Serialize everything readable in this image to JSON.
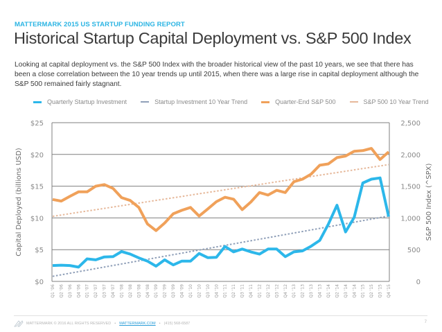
{
  "header": {
    "kicker": "MATTERMARK 2015 US STARTUP FUNDING REPORT",
    "title": "Historical Startup Capital Deployment vs. S&P 500 Index",
    "intro": "Looking at capital deployment vs. the S&P 500 Index with the broader historical view of the past 10 years, we see that there has been a close correlation between the 10 year trends up until 2015, when there was a large rise in capital deployment although the S&P 500 remained fairly stagnant."
  },
  "colors": {
    "brand": "#2ab4e3",
    "startup": "#2cb7ea",
    "startup_trend": "#8f9fb8",
    "sp500": "#f0a15a",
    "sp500_trend": "#e6b89a",
    "grid": "#7f7f7f"
  },
  "chart_data": {
    "type": "line",
    "title": "Historical Startup Capital Deployment vs. S&P 500 Index",
    "xlabel": "",
    "ylabel": "Capital Deployed (billions USD)",
    "ylabel_right": "S&P 500 Index (^SPX)",
    "ylim": [
      0,
      25
    ],
    "ylim_right": [
      0,
      2500
    ],
    "yticks": [
      "$0",
      "$5",
      "$10",
      "$15",
      "$20",
      "$25"
    ],
    "yticks_right": [
      "0",
      "500",
      "1,000",
      "1,500",
      "2,000",
      "2,500"
    ],
    "grid": true,
    "legend_position": "top",
    "categories": [
      "Q1 '06",
      "Q2 '06",
      "Q3 '06",
      "Q4 '06",
      "Q1 '07",
      "Q2 '07",
      "Q3 '07",
      "Q4 '07",
      "Q1 '08",
      "Q2 '08",
      "Q3 '08",
      "Q4 '08",
      "Q1 '09",
      "Q2 '09",
      "Q3 '09",
      "Q4 '09",
      "Q1 '10",
      "Q2 '10",
      "Q3 '10",
      "Q4 '10",
      "Q1 '11",
      "Q2 '11",
      "Q3 '11",
      "Q4 '11",
      "Q1 '12",
      "Q2 '12",
      "Q3 '12",
      "Q4 '12",
      "Q1 '13",
      "Q2 '13",
      "Q3 '13",
      "Q4 '13",
      "Q1 '14",
      "Q2 '14",
      "Q3 '14",
      "Q4 '14",
      "Q1 '15",
      "Q2 '15",
      "Q3 '15",
      "Q4 '15"
    ],
    "series": [
      {
        "name": "Quarterly Startup Investment",
        "axis": "left",
        "style": "solid",
        "values": [
          2.5,
          2.55,
          2.5,
          2.25,
          3.55,
          3.4,
          3.85,
          3.9,
          4.7,
          4.3,
          3.7,
          3.2,
          2.4,
          3.4,
          2.6,
          3.2,
          3.2,
          4.4,
          3.75,
          3.8,
          5.5,
          4.65,
          5.1,
          4.65,
          4.3,
          5.1,
          5.1,
          3.9,
          4.65,
          4.8,
          5.55,
          6.45,
          9.0,
          12.0,
          7.8,
          10.1,
          15.5,
          16.1,
          16.3,
          10.2
        ]
      },
      {
        "name": "Startup Investment 10 Year Trend",
        "axis": "left",
        "style": "dashed",
        "values_start_end": [
          0.8,
          10.3
        ]
      },
      {
        "name": "Quarter-End S&P 500",
        "axis": "right",
        "style": "solid",
        "values": [
          1290,
          1265,
          1340,
          1410,
          1410,
          1500,
          1525,
          1465,
          1320,
          1275,
          1165,
          905,
          800,
          920,
          1065,
          1120,
          1165,
          1030,
          1140,
          1255,
          1325,
          1295,
          1130,
          1250,
          1400,
          1360,
          1435,
          1400,
          1570,
          1610,
          1690,
          1830,
          1850,
          1950,
          1975,
          2050,
          2060,
          2095,
          1920,
          2040
        ]
      },
      {
        "name": "S&P 500 10 Year Trend",
        "axis": "right",
        "style": "dashed",
        "values_start_end": [
          1025,
          1840
        ]
      }
    ]
  },
  "legend": [
    {
      "label": "Quarterly Startup Investment",
      "color_key": "startup",
      "weight": "thick"
    },
    {
      "label": "Startup Investment 10 Year Trend",
      "color_key": "startup_trend",
      "weight": "thin"
    },
    {
      "label": "Quarter-End S&P 500",
      "color_key": "sp500",
      "weight": "thick"
    },
    {
      "label": "S&P 500 10 Year Trend",
      "color_key": "sp500_trend",
      "weight": "thin"
    }
  ],
  "footer": {
    "brand": "MATTERMARK",
    "copyright": "© 2016 ALL RIGHTS RESERVED",
    "link": "MATTERMARK.COM",
    "phone": "(415) 568-6587",
    "separator": "•",
    "page_number": "7"
  }
}
